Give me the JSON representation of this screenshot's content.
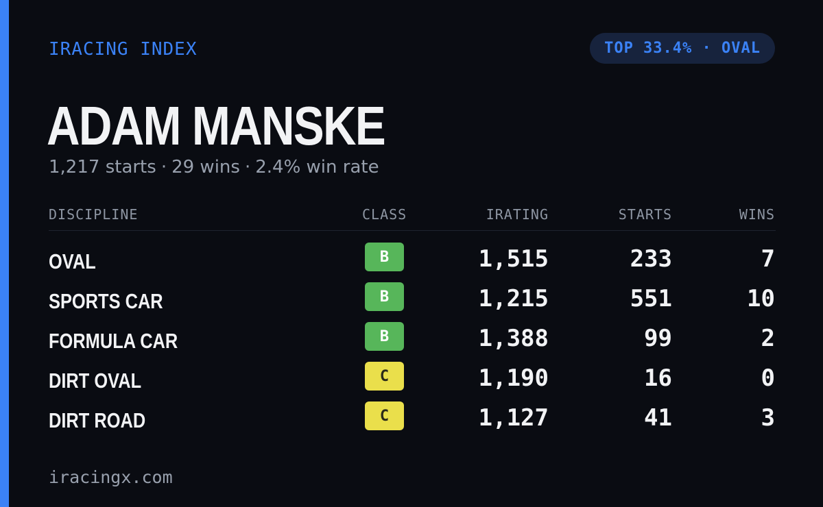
{
  "header": {
    "brand": "IRACING INDEX",
    "badge": "TOP 33.4% · OVAL"
  },
  "driver": {
    "name": "ADAM MANSKE",
    "starts_text": "1,217 starts",
    "wins_text": "29 wins",
    "win_rate_text": "2.4% win rate",
    "separator": "·"
  },
  "table": {
    "columns": [
      "DISCIPLINE",
      "CLASS",
      "IRATING",
      "STARTS",
      "WINS"
    ],
    "rows": [
      {
        "discipline": "OVAL",
        "class": "B",
        "irating": "1,515",
        "starts": "233",
        "wins": "7"
      },
      {
        "discipline": "SPORTS CAR",
        "class": "B",
        "irating": "1,215",
        "starts": "551",
        "wins": "10"
      },
      {
        "discipline": "FORMULA CAR",
        "class": "B",
        "irating": "1,388",
        "starts": "99",
        "wins": "2"
      },
      {
        "discipline": "DIRT OVAL",
        "class": "C",
        "irating": "1,190",
        "starts": "16",
        "wins": "0"
      },
      {
        "discipline": "DIRT ROAD",
        "class": "C",
        "irating": "1,127",
        "starts": "41",
        "wins": "3"
      }
    ]
  },
  "class_colors": {
    "B": {
      "bg": "#57b65a",
      "fg": "#ffffff"
    },
    "C": {
      "bg": "#eadf4b",
      "fg": "#2a2a1a"
    }
  },
  "colors": {
    "accent": "#3b82f6",
    "background": "#0a0c12"
  },
  "footer": {
    "site": "iracingx.com"
  }
}
